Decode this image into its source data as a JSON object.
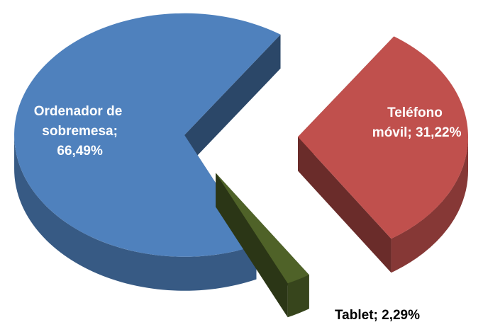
{
  "chart_data": {
    "type": "pie",
    "values": [
      66.49,
      31.22,
      2.29
    ],
    "value_labels": [
      "Ordenador de sobremesa; 66,49%",
      "Teléfono móvil; 31,22%",
      "Tablet; 2,29%"
    ],
    "colors": [
      "#4f81bd",
      "#c0504d",
      "#4f6228"
    ]
  }
}
